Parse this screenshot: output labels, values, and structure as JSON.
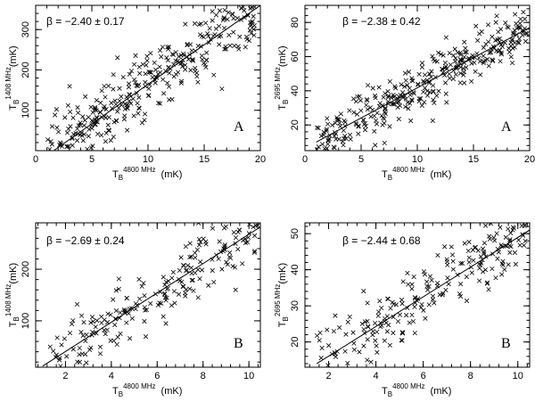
{
  "chart_data": [
    {
      "id": "panel-1",
      "type": "scatter",
      "annotation": "β = −2.40 ± 0.17",
      "label_letter": "A",
      "xlabel": {
        "T": "T",
        "sub": "B",
        "sup": "4800 MHz",
        "unit": "(mK)"
      },
      "ylabel": {
        "T": "T",
        "sub": "B",
        "sup": "1408 MHz",
        "unit": "(mK)"
      },
      "xlim": [
        0,
        20
      ],
      "ylim": [
        0,
        360
      ],
      "xticks": [
        0,
        5,
        10,
        15,
        20
      ],
      "yticks": [
        100,
        200,
        300
      ],
      "fit_line": {
        "x1": 1.6,
        "y1": 0,
        "x2": 20,
        "y2": 360
      },
      "marker": "x",
      "point_count": 360,
      "x_spread": [
        1,
        19.5
      ],
      "noise_y": 40
    },
    {
      "id": "panel-2",
      "type": "scatter",
      "annotation": "β = −2.38 ± 0.42",
      "label_letter": "A",
      "xlabel": {
        "T": "T",
        "sub": "B",
        "sup": "4800 MHz",
        "unit": "(mK)"
      },
      "ylabel": {
        "T": "T",
        "sub": "B",
        "sup": "2695 MHz",
        "unit": "(mK)"
      },
      "xlim": [
        0,
        20
      ],
      "ylim": [
        5,
        90
      ],
      "xticks": [
        0,
        5,
        10,
        15,
        20
      ],
      "yticks": [
        20,
        40,
        60,
        80
      ],
      "fit_line": {
        "x1": 1,
        "y1": 10,
        "x2": 20,
        "y2": 77
      },
      "marker": "x",
      "point_count": 340,
      "x_spread": [
        1,
        19.8
      ],
      "noise_y": 8
    },
    {
      "id": "panel-3",
      "type": "scatter",
      "annotation": "β = −2.69 ± 0.24",
      "label_letter": "B",
      "xlabel": {
        "T": "T",
        "sub": "B",
        "sup": "4800 MHz",
        "unit": "(mK)"
      },
      "ylabel": {
        "T": "T",
        "sub": "B",
        "sup": "1408 MHz",
        "unit": "(mK)"
      },
      "xlim": [
        0.7,
        10.5
      ],
      "ylim": [
        10,
        290
      ],
      "xticks": [
        2,
        4,
        6,
        8,
        10
      ],
      "yticks": [
        100,
        200
      ],
      "fit_line": {
        "x1": 1,
        "y1": 12,
        "x2": 10.5,
        "y2": 282
      },
      "marker": "x",
      "point_count": 220,
      "x_spread": [
        1.2,
        10.4
      ],
      "noise_y": 32
    },
    {
      "id": "panel-4",
      "type": "scatter",
      "annotation": "β = −2.44 ± 0.68",
      "label_letter": "B",
      "xlabel": {
        "T": "T",
        "sub": "B",
        "sup": "4800 MHz",
        "unit": "(mK)"
      },
      "ylabel": {
        "T": "T",
        "sub": "B",
        "sup": "2695 MHz",
        "unit": "(mK)"
      },
      "xlim": [
        1,
        10.5
      ],
      "ylim": [
        13,
        53
      ],
      "xticks": [
        2,
        4,
        6,
        8,
        10
      ],
      "yticks": [
        20,
        30,
        40,
        50
      ],
      "fit_line": {
        "x1": 1.5,
        "y1": 14,
        "x2": 10.5,
        "y2": 51
      },
      "marker": "x",
      "point_count": 220,
      "x_spread": [
        1.5,
        10.4
      ],
      "noise_y": 4.5
    }
  ]
}
